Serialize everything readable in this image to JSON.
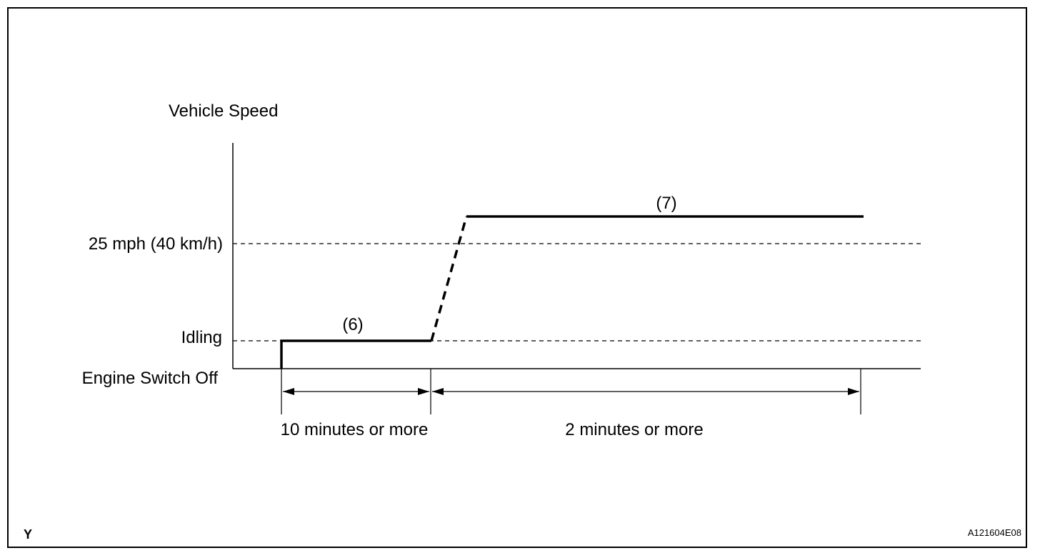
{
  "y_axis": {
    "title": "Vehicle Speed",
    "levels": {
      "speed_25mph": "25 mph (40 km/h)",
      "idling": "Idling",
      "engine_off": "Engine Switch Off"
    }
  },
  "steps": {
    "step6": "(6)",
    "step7": "(7)"
  },
  "durations": {
    "idling_period": "10 minutes or more",
    "driving_period": "2 minutes or more"
  },
  "corner_labels": {
    "left": "Y",
    "figure_code": "A121604E08"
  }
}
